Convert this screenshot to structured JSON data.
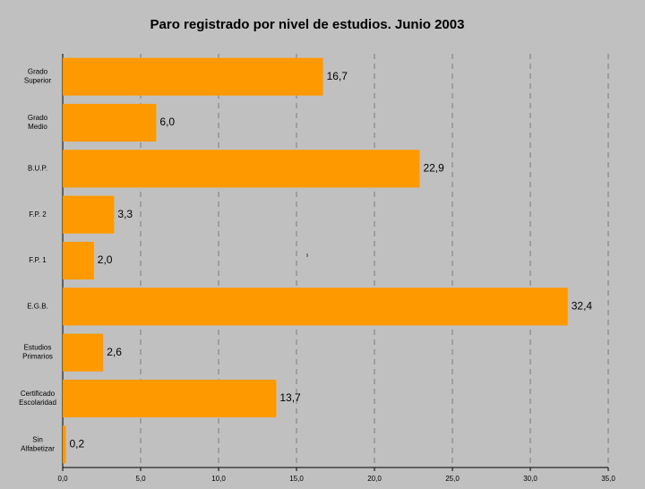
{
  "chart_data": {
    "type": "bar",
    "orientation": "horizontal",
    "title": "Paro registrado por nivel de estudios. Junio 2003",
    "categories": [
      "Grado\nSuperior",
      "Grado\nMedio",
      "B.U.P.",
      "F.P. 2",
      "F.P. 1",
      "E.G.B.",
      "Estudios\nPrimarios",
      "Certificado\nEscolaridad",
      "Sin\nAlfabetizar"
    ],
    "values": [
      16.7,
      6.0,
      22.9,
      3.3,
      2.0,
      32.4,
      2.6,
      13.7,
      0.2
    ],
    "value_labels": [
      "16,7",
      "6,0",
      "22,9",
      "3,3",
      "2,0",
      "32,4",
      "2,6",
      "13,7",
      "0,2"
    ],
    "color": "#ff9900",
    "xlim": [
      0,
      35
    ],
    "xticks": [
      {
        "value": 0,
        "label": "0,0"
      },
      {
        "value": 5,
        "label": "5,0"
      },
      {
        "value": 10,
        "label": "10,0"
      },
      {
        "value": 15,
        "label": "15,0"
      },
      {
        "value": 20,
        "label": "20,0"
      },
      {
        "value": 25,
        "label": "25,0"
      },
      {
        "value": 30,
        "label": "30,0"
      },
      {
        "value": 35,
        "label": "35,0"
      }
    ],
    "grid": true,
    "annotation": "s"
  }
}
